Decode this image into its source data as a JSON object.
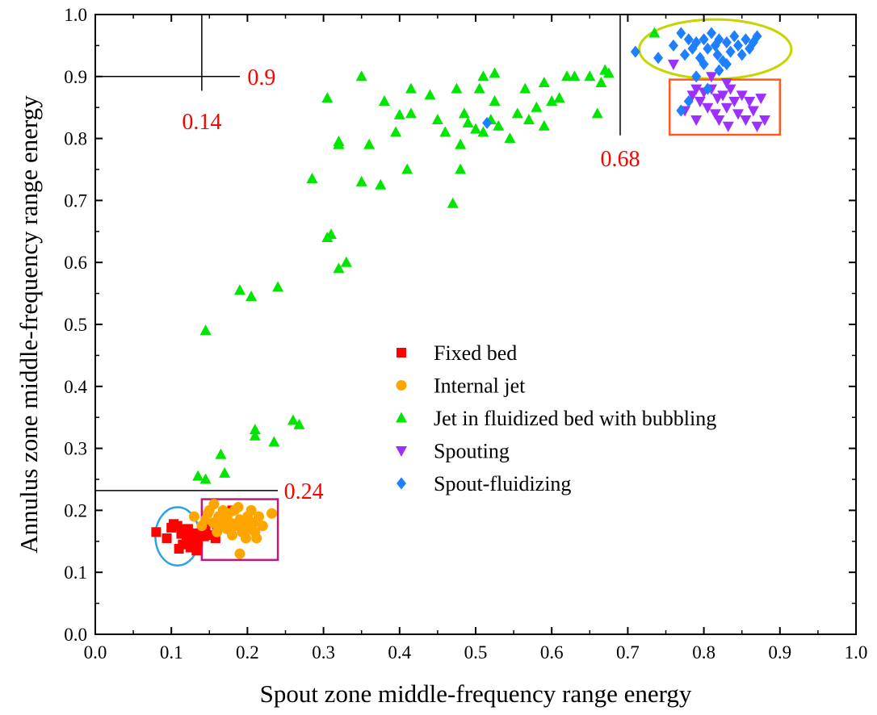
{
  "chart_data": {
    "type": "scatter",
    "xlabel": "Spout zone middle-frequency range energy",
    "ylabel": "Annulus zone middle-frequency range energy",
    "xlim": [
      0.0,
      1.0
    ],
    "ylim": [
      0.0,
      1.0
    ],
    "x_ticks": [
      "0.0",
      "0.1",
      "0.2",
      "0.3",
      "0.4",
      "0.5",
      "0.6",
      "0.7",
      "0.8",
      "0.9",
      "1.0"
    ],
    "y_ticks": [
      "0.0",
      "0.1",
      "0.2",
      "0.3",
      "0.4",
      "0.5",
      "0.6",
      "0.7",
      "0.8",
      "0.9",
      "1.0"
    ],
    "grid": false,
    "legend_position": "center",
    "series": [
      {
        "name": "Fixed bed",
        "marker": "square",
        "color": "#ff0000",
        "points": [
          [
            0.08,
            0.165
          ],
          [
            0.094,
            0.155
          ],
          [
            0.1,
            0.172
          ],
          [
            0.103,
            0.178
          ],
          [
            0.108,
            0.175
          ],
          [
            0.11,
            0.138
          ],
          [
            0.113,
            0.162
          ],
          [
            0.115,
            0.145
          ],
          [
            0.118,
            0.17
          ],
          [
            0.12,
            0.155
          ],
          [
            0.122,
            0.17
          ],
          [
            0.125,
            0.14
          ],
          [
            0.128,
            0.15
          ],
          [
            0.13,
            0.163
          ],
          [
            0.133,
            0.135
          ],
          [
            0.135,
            0.15
          ],
          [
            0.14,
            0.165
          ],
          [
            0.143,
            0.158
          ],
          [
            0.145,
            0.17
          ],
          [
            0.148,
            0.16
          ],
          [
            0.158,
            0.155
          ],
          [
            0.16,
            0.175
          ],
          [
            0.165,
            0.19
          ],
          [
            0.18,
            0.2
          ]
        ]
      },
      {
        "name": "Internal jet",
        "marker": "circle",
        "color": "#ffa500",
        "points": [
          [
            0.13,
            0.19
          ],
          [
            0.14,
            0.175
          ],
          [
            0.145,
            0.185
          ],
          [
            0.148,
            0.195
          ],
          [
            0.15,
            0.2
          ],
          [
            0.155,
            0.18
          ],
          [
            0.156,
            0.21
          ],
          [
            0.16,
            0.165
          ],
          [
            0.162,
            0.19
          ],
          [
            0.165,
            0.175
          ],
          [
            0.168,
            0.2
          ],
          [
            0.17,
            0.185
          ],
          [
            0.173,
            0.17
          ],
          [
            0.175,
            0.195
          ],
          [
            0.178,
            0.18
          ],
          [
            0.18,
            0.16
          ],
          [
            0.183,
            0.2
          ],
          [
            0.185,
            0.175
          ],
          [
            0.188,
            0.205
          ],
          [
            0.19,
            0.185
          ],
          [
            0.193,
            0.165
          ],
          [
            0.195,
            0.18
          ],
          [
            0.198,
            0.155
          ],
          [
            0.2,
            0.19
          ],
          [
            0.202,
            0.17
          ],
          [
            0.205,
            0.2
          ],
          [
            0.208,
            0.18
          ],
          [
            0.21,
            0.165
          ],
          [
            0.212,
            0.155
          ],
          [
            0.215,
            0.19
          ],
          [
            0.22,
            0.175
          ],
          [
            0.232,
            0.195
          ],
          [
            0.19,
            0.13
          ]
        ]
      },
      {
        "name": "Jet in fluidized bed with bubbling",
        "marker": "triangle-up",
        "color": "#00e600",
        "points": [
          [
            0.135,
            0.255
          ],
          [
            0.145,
            0.25
          ],
          [
            0.165,
            0.29
          ],
          [
            0.17,
            0.26
          ],
          [
            0.21,
            0.33
          ],
          [
            0.21,
            0.32
          ],
          [
            0.235,
            0.31
          ],
          [
            0.26,
            0.345
          ],
          [
            0.268,
            0.338
          ],
          [
            0.145,
            0.49
          ],
          [
            0.19,
            0.555
          ],
          [
            0.205,
            0.545
          ],
          [
            0.24,
            0.56
          ],
          [
            0.305,
            0.64
          ],
          [
            0.31,
            0.645
          ],
          [
            0.32,
            0.59
          ],
          [
            0.33,
            0.6
          ],
          [
            0.285,
            0.735
          ],
          [
            0.35,
            0.73
          ],
          [
            0.375,
            0.725
          ],
          [
            0.38,
            0.86
          ],
          [
            0.305,
            0.865
          ],
          [
            0.32,
            0.795
          ],
          [
            0.32,
            0.79
          ],
          [
            0.35,
            0.9
          ],
          [
            0.36,
            0.79
          ],
          [
            0.395,
            0.81
          ],
          [
            0.4,
            0.838
          ],
          [
            0.41,
            0.75
          ],
          [
            0.415,
            0.84
          ],
          [
            0.415,
            0.88
          ],
          [
            0.44,
            0.87
          ],
          [
            0.45,
            0.83
          ],
          [
            0.46,
            0.81
          ],
          [
            0.47,
            0.695
          ],
          [
            0.475,
            0.88
          ],
          [
            0.48,
            0.75
          ],
          [
            0.48,
            0.79
          ],
          [
            0.485,
            0.84
          ],
          [
            0.49,
            0.825
          ],
          [
            0.5,
            0.815
          ],
          [
            0.505,
            0.88
          ],
          [
            0.51,
            0.81
          ],
          [
            0.51,
            0.9
          ],
          [
            0.52,
            0.83
          ],
          [
            0.525,
            0.86
          ],
          [
            0.53,
            0.82
          ],
          [
            0.525,
            0.905
          ],
          [
            0.545,
            0.8
          ],
          [
            0.555,
            0.84
          ],
          [
            0.565,
            0.88
          ],
          [
            0.57,
            0.83
          ],
          [
            0.58,
            0.85
          ],
          [
            0.59,
            0.89
          ],
          [
            0.6,
            0.86
          ],
          [
            0.61,
            0.865
          ],
          [
            0.62,
            0.9
          ],
          [
            0.63,
            0.9
          ],
          [
            0.65,
            0.9
          ],
          [
            0.66,
            0.84
          ],
          [
            0.665,
            0.89
          ],
          [
            0.67,
            0.91
          ],
          [
            0.675,
            0.905
          ],
          [
            0.735,
            0.97
          ],
          [
            0.59,
            0.82
          ]
        ]
      },
      {
        "name": "Spouting",
        "marker": "triangle-down",
        "color": "#9b30ff",
        "points": [
          [
            0.76,
            0.92
          ],
          [
            0.775,
            0.845
          ],
          [
            0.785,
            0.87
          ],
          [
            0.79,
            0.88
          ],
          [
            0.795,
            0.86
          ],
          [
            0.8,
            0.875
          ],
          [
            0.805,
            0.85
          ],
          [
            0.81,
            0.88
          ],
          [
            0.815,
            0.84
          ],
          [
            0.818,
            0.865
          ],
          [
            0.82,
            0.83
          ],
          [
            0.825,
            0.87
          ],
          [
            0.83,
            0.85
          ],
          [
            0.832,
            0.82
          ],
          [
            0.835,
            0.88
          ],
          [
            0.84,
            0.86
          ],
          [
            0.845,
            0.84
          ],
          [
            0.85,
            0.87
          ],
          [
            0.855,
            0.83
          ],
          [
            0.86,
            0.86
          ],
          [
            0.865,
            0.845
          ],
          [
            0.87,
            0.82
          ],
          [
            0.875,
            0.865
          ],
          [
            0.88,
            0.83
          ],
          [
            0.81,
            0.9
          ],
          [
            0.79,
            0.83
          ],
          [
            0.83,
            0.89
          ]
        ]
      },
      {
        "name": "Spout-fluidizing",
        "marker": "diamond",
        "color": "#1e7fff",
        "points": [
          [
            0.515,
            0.825
          ],
          [
            0.71,
            0.94
          ],
          [
            0.74,
            0.93
          ],
          [
            0.76,
            0.95
          ],
          [
            0.77,
            0.97
          ],
          [
            0.775,
            0.935
          ],
          [
            0.78,
            0.96
          ],
          [
            0.785,
            0.945
          ],
          [
            0.79,
            0.955
          ],
          [
            0.795,
            0.93
          ],
          [
            0.8,
            0.96
          ],
          [
            0.805,
            0.945
          ],
          [
            0.81,
            0.97
          ],
          [
            0.815,
            0.95
          ],
          [
            0.818,
            0.935
          ],
          [
            0.82,
            0.96
          ],
          [
            0.825,
            0.925
          ],
          [
            0.83,
            0.955
          ],
          [
            0.835,
            0.94
          ],
          [
            0.84,
            0.965
          ],
          [
            0.845,
            0.95
          ],
          [
            0.85,
            0.935
          ],
          [
            0.855,
            0.96
          ],
          [
            0.86,
            0.945
          ],
          [
            0.865,
            0.955
          ],
          [
            0.87,
            0.965
          ],
          [
            0.79,
            0.9
          ],
          [
            0.805,
            0.88
          ],
          [
            0.78,
            0.86
          ],
          [
            0.77,
            0.845
          ],
          [
            0.82,
            0.91
          ],
          [
            0.83,
            0.92
          ],
          [
            0.8,
            0.92
          ]
        ]
      }
    ],
    "annotations": [
      {
        "text": "0.9",
        "x": 0.14,
        "y": 0.9
      },
      {
        "text": "0.14",
        "x": 0.14,
        "y": 0.9
      },
      {
        "text": "0.68",
        "x": 0.69,
        "y": 0.8
      },
      {
        "text": "0.24",
        "x": 0.24,
        "y": 0.232
      }
    ],
    "region_colors": {
      "blue_circle": "#2aa4e8",
      "magenta_rect": "#c2187a",
      "olive_ellipse": "#c8d400",
      "orange_rect": "#ff5a1f"
    }
  }
}
